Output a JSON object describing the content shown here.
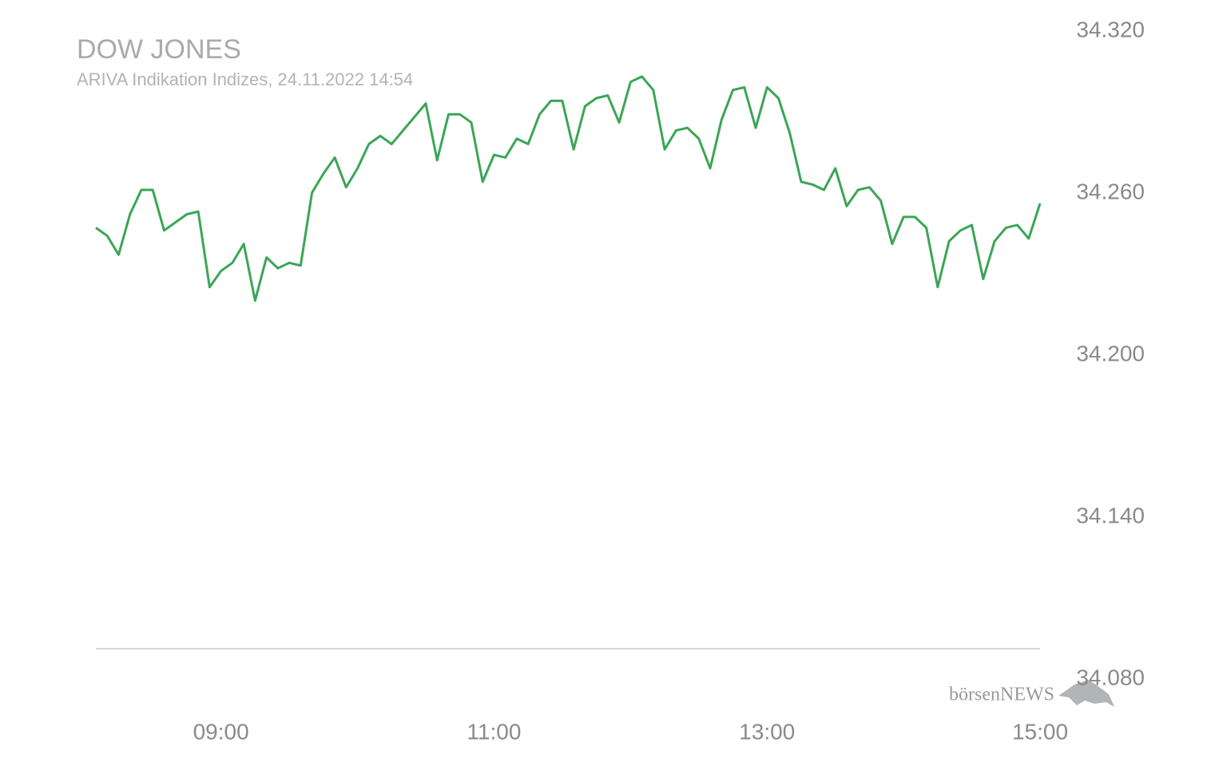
{
  "chart_data": {
    "type": "line",
    "title": "DOW JONES",
    "subtitle": "ARIVA Indikation Indizes, 24.11.2022 14:54",
    "watermark": "börsenNEWS",
    "color": "#3aa655",
    "x": [
      485,
      490,
      495,
      500,
      505,
      510,
      515,
      520,
      525,
      530,
      535,
      540,
      545,
      550,
      555,
      560,
      565,
      570,
      575,
      580,
      585,
      590,
      595,
      600,
      605,
      610,
      615,
      620,
      625,
      630,
      635,
      640,
      645,
      650,
      655,
      660,
      665,
      670,
      675,
      680,
      685,
      690,
      695,
      700,
      705,
      710,
      715,
      720,
      725,
      730,
      735,
      740,
      745,
      750,
      755,
      760,
      765,
      770,
      775,
      780,
      785,
      790,
      795,
      800,
      805,
      810,
      815,
      820,
      825,
      830,
      835,
      840,
      845,
      850,
      855,
      860,
      865,
      870,
      875,
      880,
      885,
      890,
      895,
      900
    ],
    "values": [
      34.246,
      34.243,
      34.236,
      34.251,
      34.26,
      34.26,
      34.245,
      34.248,
      34.251,
      34.252,
      34.224,
      34.23,
      34.233,
      34.24,
      34.219,
      34.235,
      34.231,
      34.233,
      34.232,
      34.259,
      34.266,
      34.272,
      34.261,
      34.268,
      34.277,
      34.28,
      34.277,
      34.282,
      34.287,
      34.292,
      34.271,
      34.288,
      34.288,
      34.285,
      34.263,
      34.273,
      34.272,
      34.279,
      34.277,
      34.288,
      34.293,
      34.293,
      34.275,
      34.291,
      34.294,
      34.295,
      34.285,
      34.3,
      34.302,
      34.297,
      34.275,
      34.282,
      34.283,
      34.279,
      34.268,
      34.286,
      34.297,
      34.298,
      34.283,
      34.298,
      34.294,
      34.281,
      34.263,
      34.262,
      34.26,
      34.268,
      34.254,
      34.26,
      34.261,
      34.256,
      34.24,
      34.25,
      34.25,
      34.246,
      34.224,
      34.241,
      34.245,
      34.247,
      34.227,
      34.241,
      34.246,
      34.247,
      34.242,
      34.255
    ],
    "xlim": [
      485,
      900
    ],
    "xticks": [
      {
        "value": 540,
        "label": "09:00"
      },
      {
        "value": 660,
        "label": "11:00"
      },
      {
        "value": 780,
        "label": "13:00"
      },
      {
        "value": 900,
        "label": "15:00"
      }
    ],
    "ylim": [
      34.07,
      34.32
    ],
    "yticks": [
      {
        "value": 34.32,
        "label": "34.320"
      },
      {
        "value": 34.26,
        "label": "34.260"
      },
      {
        "value": 34.2,
        "label": "34.200"
      },
      {
        "value": 34.14,
        "label": "34.140"
      },
      {
        "value": 34.08,
        "label": "34.080"
      }
    ]
  }
}
